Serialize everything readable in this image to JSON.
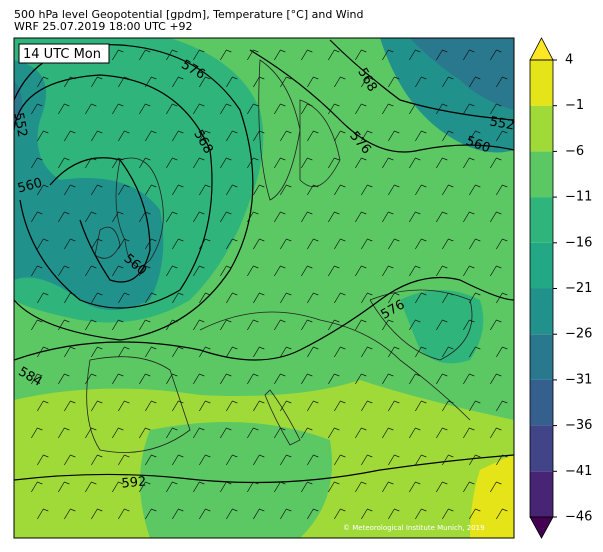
{
  "header": {
    "title": "500 hPa level Geopotential [gpdm], Temperature [°C] and Wind",
    "subtitle": "WRF 25.07.2019 18:00 UTC +92"
  },
  "map": {
    "time_label": "14 UTC Mon",
    "contour_labels": [
      576,
      568,
      552,
      568,
      576,
      552,
      560,
      560,
      560,
      576,
      584,
      592
    ],
    "copyright": "© Meteorological Institute Munich, 2019"
  },
  "colorbar": {
    "ticks": [
      {
        "value": -46,
        "label": "−46"
      },
      {
        "value": -41,
        "label": "−41"
      },
      {
        "value": -36,
        "label": "−36"
      },
      {
        "value": -31,
        "label": "−31"
      },
      {
        "value": -26,
        "label": "−26"
      },
      {
        "value": -21,
        "label": "−21"
      },
      {
        "value": -16,
        "label": "−16"
      },
      {
        "value": -11,
        "label": "−11"
      },
      {
        "value": -6,
        "label": "−6"
      },
      {
        "value": -1,
        "label": "−1"
      },
      4
    ],
    "colors": [
      "#482475",
      "#414487",
      "#355f8d",
      "#2a788e",
      "#21918c",
      "#22a884",
      "#2fb47c",
      "#5cc863",
      "#a0da39",
      "#e5e419"
    ],
    "extend_colors": [
      "#440154",
      "#fde725"
    ]
  }
}
